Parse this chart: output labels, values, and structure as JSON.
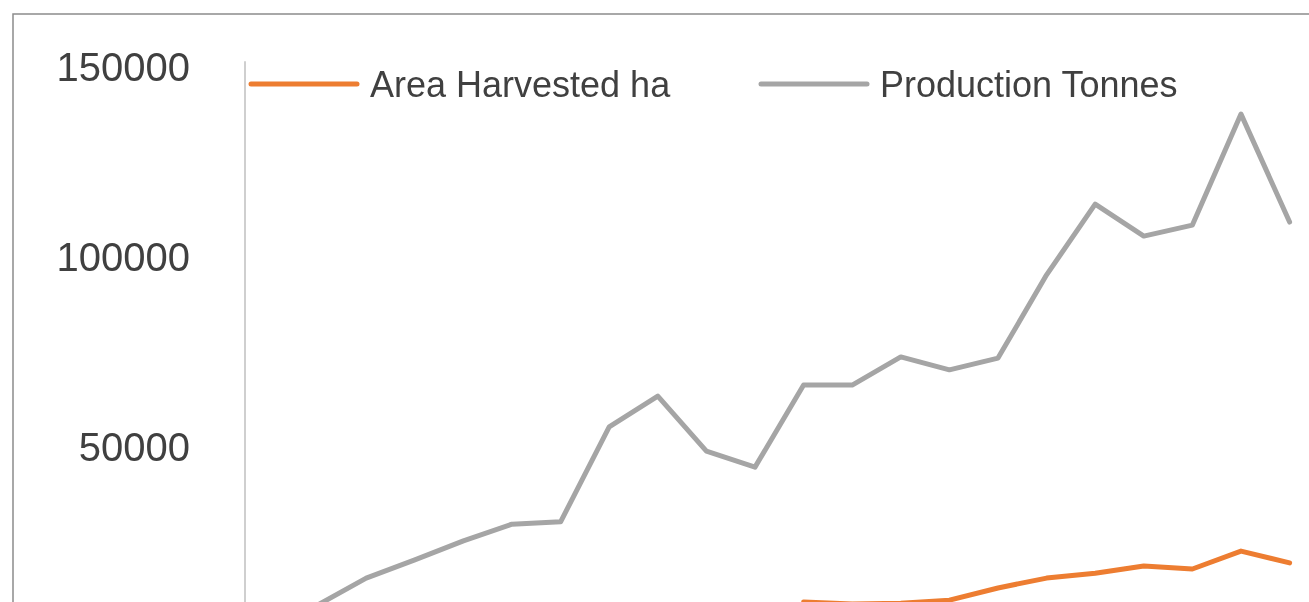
{
  "chart_data": {
    "type": "line",
    "categories": [
      null,
      null,
      null,
      null,
      null,
      null,
      null,
      null,
      null,
      null,
      null,
      null,
      null,
      null,
      null,
      null,
      null,
      null,
      null,
      null,
      null,
      null
    ],
    "series": [
      {
        "name": "Area Harvested ha",
        "color": "#ed7d31",
        "values": [
          null,
          null,
          null,
          null,
          null,
          null,
          null,
          null,
          null,
          null,
          null,
          9200,
          8700,
          8900,
          9700,
          12900,
          15500,
          16800,
          18700,
          17900,
          22600,
          19500
        ]
      },
      {
        "name": "Production Tonnes",
        "color": "#a5a5a5",
        "values": [
          null,
          8400,
          15500,
          20300,
          25300,
          29700,
          30300,
          55300,
          63400,
          48900,
          44700,
          66300,
          66300,
          73700,
          70300,
          73400,
          95300,
          113900,
          105500,
          108400,
          137600,
          109200
        ]
      }
    ],
    "ylim": [
      8000,
      151500
    ],
    "yticks": [
      50000,
      100000,
      150000
    ],
    "legend": "top",
    "grid": false,
    "marker": "none",
    "line_style": "solid"
  }
}
